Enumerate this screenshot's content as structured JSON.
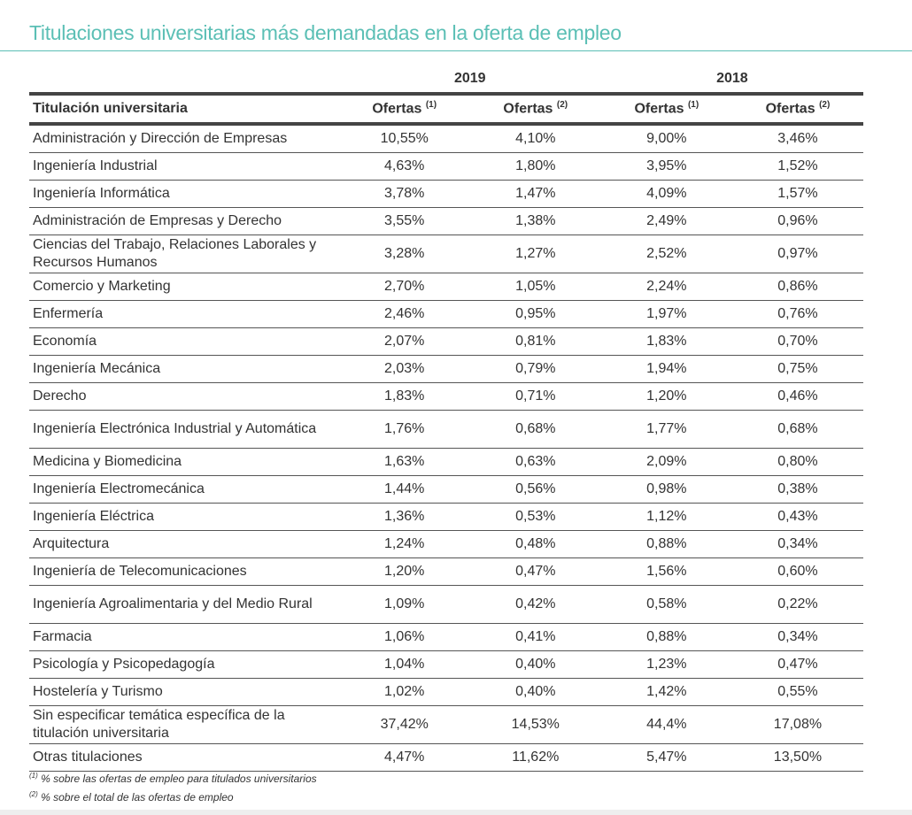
{
  "title": "Titulaciones universitarias más demandadas en la oferta de empleo",
  "accent_color": "#5bbfb5",
  "years": [
    "2019",
    "2018"
  ],
  "columns": {
    "name": "Titulación universitaria",
    "c1": "Ofertas",
    "s1": "(1)",
    "c2": "Ofertas",
    "s2": "(2)"
  },
  "rows": [
    {
      "name": "Administración y Dirección de Empresas",
      "v": [
        "10,55%",
        "4,10%",
        "9,00%",
        "3,46%"
      ]
    },
    {
      "name": "Ingeniería Industrial",
      "v": [
        "4,63%",
        "1,80%",
        "3,95%",
        "1,52%"
      ]
    },
    {
      "name": "Ingeniería Informática",
      "v": [
        "3,78%",
        "1,47%",
        "4,09%",
        "1,57%"
      ]
    },
    {
      "name": "Administración de Empresas y Derecho",
      "v": [
        "3,55%",
        "1,38%",
        "2,49%",
        "0,96%"
      ]
    },
    {
      "name": "Ciencias del Trabajo, Relaciones Laborales y Recursos Humanos",
      "v": [
        "3,28%",
        "1,27%",
        "2,52%",
        "0,97%"
      ]
    },
    {
      "name": "Comercio y Marketing",
      "v": [
        "2,70%",
        "1,05%",
        "2,24%",
        "0,86%"
      ]
    },
    {
      "name": "Enfermería",
      "v": [
        "2,46%",
        "0,95%",
        "1,97%",
        "0,76%"
      ]
    },
    {
      "name": "Economía",
      "v": [
        "2,07%",
        "0,81%",
        "1,83%",
        "0,70%"
      ]
    },
    {
      "name": "Ingeniería Mecánica",
      "v": [
        "2,03%",
        "0,79%",
        "1,94%",
        "0,75%"
      ]
    },
    {
      "name": "Derecho",
      "v": [
        "1,83%",
        "0,71%",
        "1,20%",
        "0,46%"
      ]
    },
    {
      "name": "Ingeniería Electrónica Industrial y Automática",
      "v": [
        "1,76%",
        "0,68%",
        "1,77%",
        "0,68%"
      ]
    },
    {
      "name": "Medicina y Biomedicina",
      "v": [
        "1,63%",
        "0,63%",
        "2,09%",
        "0,80%"
      ]
    },
    {
      "name": "Ingeniería Electromecánica",
      "v": [
        "1,44%",
        "0,56%",
        "0,98%",
        "0,38%"
      ]
    },
    {
      "name": "Ingeniería Eléctrica",
      "v": [
        "1,36%",
        "0,53%",
        "1,12%",
        "0,43%"
      ]
    },
    {
      "name": "Arquitectura",
      "v": [
        "1,24%",
        "0,48%",
        "0,88%",
        "0,34%"
      ]
    },
    {
      "name": "Ingeniería de Telecomunicaciones",
      "v": [
        "1,20%",
        "0,47%",
        "1,56%",
        "0,60%"
      ]
    },
    {
      "name": "Ingeniería Agroalimentaria y del Medio Rural",
      "v": [
        "1,09%",
        "0,42%",
        "0,58%",
        "0,22%"
      ]
    },
    {
      "name": "Farmacia",
      "v": [
        "1,06%",
        "0,41%",
        "0,88%",
        "0,34%"
      ]
    },
    {
      "name": "Psicología y Psicopedagogía",
      "v": [
        "1,04%",
        "0,40%",
        "1,23%",
        "0,47%"
      ]
    },
    {
      "name": "Hostelería y Turismo",
      "v": [
        "1,02%",
        "0,40%",
        "1,42%",
        "0,55%"
      ]
    },
    {
      "name": "Sin especificar temática específica de la titulación universitaria",
      "v": [
        "37,42%",
        "14,53%",
        "44,4%",
        "17,08%"
      ]
    },
    {
      "name": "Otras titulaciones",
      "v": [
        "4,47%",
        "11,62%",
        "5,47%",
        "13,50%"
      ]
    }
  ],
  "footnotes": [
    {
      "mark": "(1)",
      "text": "% sobre las ofertas de empleo para titulados universitarios"
    },
    {
      "mark": "(2)",
      "text": "% sobre el total de las ofertas de empleo"
    }
  ]
}
